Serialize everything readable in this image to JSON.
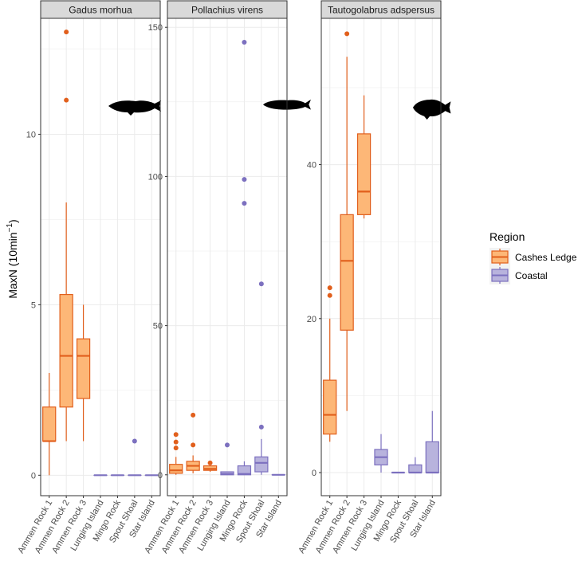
{
  "chart_data": {
    "type": "box",
    "ylabel": "MaxN (10min",
    "ylabel_superscript": "−1",
    "ylabel_close": ")",
    "categories": [
      "Ammen Rock 1",
      "Ammen Rock 2",
      "Ammen Rock 3",
      "Lunging Island",
      "Mingo Rock",
      "Spout Shoal",
      "Star Island"
    ],
    "category_region": [
      "Cashes Ledge",
      "Cashes Ledge",
      "Cashes Ledge",
      "Coastal",
      "Coastal",
      "Coastal",
      "Coastal"
    ],
    "legend": {
      "title": "Region",
      "placement": "right",
      "entries": [
        {
          "name": "Cashes Ledge",
          "fill": "#fdb777",
          "stroke": "#e15f1c"
        },
        {
          "name": "Coastal",
          "fill": "#b8b3dd",
          "stroke": "#7c70bf"
        }
      ]
    },
    "grid": true,
    "panels": [
      {
        "title": "Gadus morhua",
        "ylim": [
          -0.6,
          13.4
        ],
        "yticks": [
          0,
          5,
          10
        ],
        "fish": "cod",
        "boxes": [
          {
            "min": 0,
            "q1": 1,
            "median": 1,
            "q3": 2,
            "max": 3,
            "outliers": []
          },
          {
            "min": 1,
            "q1": 2,
            "median": 3.5,
            "q3": 5.3,
            "max": 8,
            "outliers": [
              11,
              13
            ]
          },
          {
            "min": 1,
            "q1": 2.25,
            "median": 3.5,
            "q3": 4,
            "max": 5,
            "outliers": []
          },
          {
            "min": 0,
            "q1": 0,
            "median": 0,
            "q3": 0,
            "max": 0,
            "outliers": []
          },
          {
            "min": 0,
            "q1": 0,
            "median": 0,
            "q3": 0,
            "max": 0,
            "outliers": []
          },
          {
            "min": 0,
            "q1": 0,
            "median": 0,
            "q3": 0,
            "max": 0,
            "outliers": [
              1
            ]
          },
          {
            "min": 0,
            "q1": 0,
            "median": 0,
            "q3": 0,
            "max": 0,
            "outliers": []
          }
        ]
      },
      {
        "title": "Pollachius virens",
        "ylim": [
          -7,
          153
        ],
        "yticks": [
          0,
          50,
          100,
          150
        ],
        "fish": "pollock",
        "boxes": [
          {
            "min": 0,
            "q1": 0.5,
            "median": 1.5,
            "q3": 3.5,
            "max": 6,
            "outliers": [
              9,
              11,
              13.5
            ]
          },
          {
            "min": 0.5,
            "q1": 1.5,
            "median": 3,
            "q3": 4.5,
            "max": 6.5,
            "outliers": [
              10,
              20
            ]
          },
          {
            "min": 1,
            "q1": 1.5,
            "median": 2,
            "q3": 3,
            "max": 3,
            "outliers": [
              4
            ]
          },
          {
            "min": 0,
            "q1": 0,
            "median": 0.3,
            "q3": 1,
            "max": 1,
            "outliers": [
              10
            ]
          },
          {
            "min": 0,
            "q1": 0,
            "median": 0.3,
            "q3": 3,
            "max": 4.5,
            "outliers": [
              91,
              99,
              145
            ]
          },
          {
            "min": 0,
            "q1": 1,
            "median": 4,
            "q3": 6,
            "max": 12,
            "outliers": [
              16,
              64
            ]
          },
          {
            "min": 0,
            "q1": 0,
            "median": 0,
            "q3": 0,
            "max": 0,
            "outliers": []
          }
        ]
      },
      {
        "title": "Tautogolabrus adspersus",
        "ylim": [
          -3,
          59
        ],
        "yticks": [
          0,
          20,
          40
        ],
        "fish": "cunner",
        "boxes": [
          {
            "min": 4,
            "q1": 5,
            "median": 7.5,
            "q3": 12,
            "max": 20,
            "outliers": [
              23,
              24
            ]
          },
          {
            "min": 8,
            "q1": 18.5,
            "median": 27.5,
            "q3": 33.5,
            "max": 54,
            "outliers": [
              57
            ]
          },
          {
            "min": 33,
            "q1": 33.5,
            "median": 36.5,
            "q3": 44,
            "max": 49,
            "outliers": []
          },
          {
            "min": 0,
            "q1": 1,
            "median": 2,
            "q3": 3,
            "max": 5,
            "outliers": []
          },
          {
            "min": 0,
            "q1": 0,
            "median": 0,
            "q3": 0,
            "max": 0,
            "outliers": []
          },
          {
            "min": 0,
            "q1": 0,
            "median": 0,
            "q3": 1,
            "max": 2,
            "outliers": []
          },
          {
            "min": 0,
            "q1": 0,
            "median": 0,
            "q3": 4,
            "max": 8,
            "outliers": []
          }
        ]
      }
    ]
  }
}
